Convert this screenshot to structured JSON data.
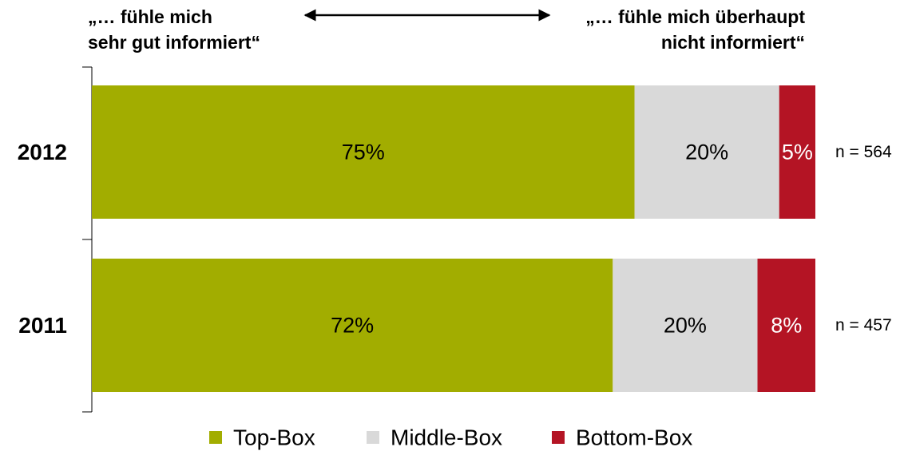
{
  "annotations": {
    "left_line1": "„… fühle mich",
    "left_line2": "sehr gut informiert“",
    "right_line1": "„… fühle mich überhaupt",
    "right_line2": "nicht informiert“"
  },
  "chart_data": {
    "type": "bar",
    "orientation": "horizontal",
    "stacked": true,
    "percent": true,
    "categories": [
      "2012",
      "2011"
    ],
    "series": [
      {
        "name": "Top-Box",
        "color": "#a2ad00",
        "label_color": "#000000",
        "values": [
          75,
          72
        ]
      },
      {
        "name": "Middle-Box",
        "color": "#d9d9d9",
        "label_color": "#000000",
        "values": [
          20,
          20
        ]
      },
      {
        "name": "Bottom-Box",
        "color": "#b41424",
        "label_color": "#ffffff",
        "values": [
          5,
          8
        ]
      }
    ],
    "value_labels": [
      [
        "75%",
        "20%",
        "5%"
      ],
      [
        "72%",
        "20%",
        "8%"
      ]
    ],
    "sample_sizes": [
      "n = 564",
      "n = 457"
    ],
    "xlim": [
      0,
      100
    ],
    "legend": "bottom",
    "grid": false,
    "title": "",
    "xlabel": "",
    "ylabel": ""
  }
}
